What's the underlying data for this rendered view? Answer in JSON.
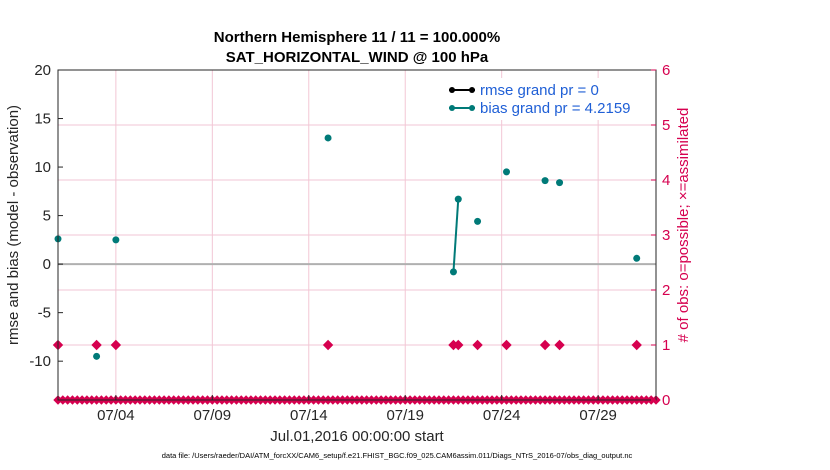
{
  "chart_data": {
    "type": "scatter",
    "title_line1": "Northern Hemisphere 11 / 11 = 100.000%",
    "title_line2": "SAT_HORIZONTAL_WIND @ 100 hPa",
    "ylabel_left": "rmse and bias (model - observation)",
    "ylabel_right": "# of obs: o=possible; ×=assimilated",
    "xlabel": "Jul.01,2016 00:00:00 start",
    "footer": "data file: /Users/raeder/DAI/ATM_forcXX/CAM6_setup/f.e21.FHIST_BGC.f09_025.CAM6assim.011/Diags_NTrS_2016-07/obs_diag_output.nc",
    "xlim": [
      1.0,
      32.0
    ],
    "ylim_left": [
      -14,
      20
    ],
    "ylim_right": [
      0,
      6
    ],
    "x_ticks": [
      4,
      9,
      14,
      19,
      24,
      29
    ],
    "x_tick_labels": [
      "07/04",
      "07/09",
      "07/14",
      "07/19",
      "07/24",
      "07/29"
    ],
    "y_ticks_left": [
      -10,
      -5,
      0,
      5,
      10,
      15,
      20
    ],
    "y_ticks_right": [
      0,
      1,
      2,
      3,
      4,
      5,
      6
    ],
    "legend": [
      {
        "label": "rmse grand pr = 0",
        "color": "#000000"
      },
      {
        "label": "bias grand pr = 4.2159",
        "color": "#007a78"
      }
    ],
    "series": [
      {
        "name": "bias",
        "color": "#007a78",
        "points": [
          [
            1.0,
            2.6
          ],
          [
            3.0,
            -9.5
          ],
          [
            4.0,
            2.5
          ],
          [
            15.0,
            13.0
          ],
          [
            21.5,
            -0.8
          ],
          [
            21.75,
            6.7
          ],
          [
            22.75,
            4.4
          ],
          [
            24.25,
            9.5
          ],
          [
            26.25,
            8.6
          ],
          [
            27.0,
            8.4
          ],
          [
            31.0,
            0.6
          ]
        ],
        "segments": [
          [
            [
              21.5,
              -0.8
            ],
            [
              21.75,
              6.7
            ]
          ]
        ]
      },
      {
        "name": "obs_possible_nonzero",
        "color": "#d6004f",
        "axis": "right",
        "points": [
          [
            1.0,
            1
          ],
          [
            3.0,
            1
          ],
          [
            4.0,
            1
          ],
          [
            15.0,
            1
          ],
          [
            21.5,
            1
          ],
          [
            21.75,
            1
          ],
          [
            22.75,
            1
          ],
          [
            24.25,
            1
          ],
          [
            26.25,
            1
          ],
          [
            27.0,
            1
          ],
          [
            31.0,
            1
          ]
        ]
      }
    ],
    "zero_obs_x_start": 1.0,
    "zero_obs_x_end": 32.0,
    "zero_obs_step": 0.25
  }
}
